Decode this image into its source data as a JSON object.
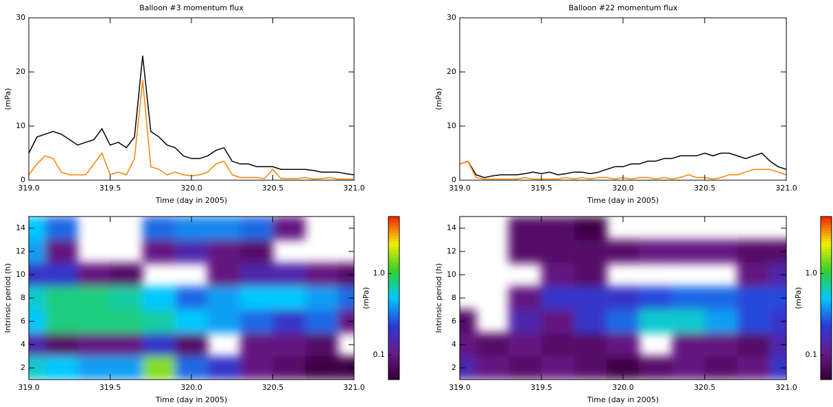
{
  "chart_data": [
    {
      "type": "line",
      "title": "Balloon #3 momentum flux",
      "xlabel": "Time (day in 2005)",
      "ylabel": "(mPa)",
      "x": [
        319.0,
        319.05,
        319.1,
        319.15,
        319.2,
        319.25,
        319.3,
        319.35,
        319.4,
        319.45,
        319.5,
        319.55,
        319.6,
        319.65,
        319.7,
        319.75,
        319.8,
        319.85,
        319.9,
        319.95,
        320.0,
        320.05,
        320.1,
        320.15,
        320.2,
        320.25,
        320.3,
        320.35,
        320.4,
        320.45,
        320.5,
        320.55,
        320.6,
        320.65,
        320.7,
        320.75,
        320.8,
        320.85,
        320.9,
        320.95,
        321.0
      ],
      "series": [
        {
          "color": "#000000",
          "values": [
            5,
            8,
            8.5,
            9,
            8.5,
            7.5,
            6.5,
            7,
            7.5,
            9.5,
            6.5,
            7,
            6,
            8,
            23,
            9,
            8,
            6.5,
            6,
            4.5,
            4,
            4,
            4.5,
            5.5,
            6,
            3.5,
            3,
            3,
            2.5,
            2.5,
            2.5,
            2,
            2,
            2,
            2,
            1.8,
            1.5,
            1.5,
            1.5,
            1.2,
            1
          ]
        },
        {
          "color": "#ff8000",
          "values": [
            1,
            3,
            4.5,
            4,
            1.5,
            1,
            1,
            1,
            3,
            5,
            1,
            1.5,
            1,
            4,
            18.5,
            2.5,
            2,
            1,
            1.5,
            1,
            0.8,
            1,
            1.5,
            3,
            3.5,
            1,
            0.5,
            0.5,
            0.5,
            0.3,
            2,
            0.3,
            0.3,
            0.3,
            0.5,
            0.2,
            0.3,
            0.5,
            0.2,
            0.2,
            0.2
          ]
        }
      ],
      "xlim": [
        319,
        321
      ],
      "xticks": [
        {
          "value": 319,
          "label": "319.0"
        },
        319.5,
        {
          "value": 320,
          "label": "320.0"
        },
        320.5,
        {
          "value": 321,
          "label": "321.0"
        }
      ],
      "ylim": [
        0,
        30
      ],
      "yticks": [
        0,
        10,
        20,
        30
      ]
    },
    {
      "type": "line",
      "title": "Balloon #22 momentum flux",
      "xlabel": "Time (day in 2005)",
      "ylabel": "(mPa)",
      "x": [
        319.0,
        319.05,
        319.1,
        319.15,
        319.2,
        319.25,
        319.3,
        319.35,
        319.4,
        319.45,
        319.5,
        319.55,
        319.6,
        319.65,
        319.7,
        319.75,
        319.8,
        319.85,
        319.9,
        319.95,
        320.0,
        320.05,
        320.1,
        320.15,
        320.2,
        320.25,
        320.3,
        320.35,
        320.4,
        320.45,
        320.5,
        320.55,
        320.6,
        320.65,
        320.7,
        320.75,
        320.8,
        320.85,
        320.9,
        320.95,
        321.0
      ],
      "series": [
        {
          "color": "#000000",
          "values": [
            3,
            3.5,
            1,
            0.5,
            0.8,
            1,
            1,
            1,
            1.2,
            1.5,
            1.2,
            1.5,
            1,
            1.2,
            1.5,
            1.5,
            1.2,
            1.5,
            2,
            2.5,
            2.5,
            3,
            3,
            3.5,
            3.5,
            4,
            4,
            4.5,
            4.5,
            4.5,
            5,
            4.5,
            5,
            5,
            4.5,
            4,
            4.5,
            5,
            3.5,
            2.5,
            2
          ]
        },
        {
          "color": "#ff8000",
          "values": [
            3,
            3.5,
            0.5,
            0.2,
            0.2,
            0.2,
            0.2,
            0.2,
            0.5,
            0.2,
            0.2,
            0.2,
            0.2,
            0.5,
            0.2,
            0.5,
            0.2,
            0.5,
            0.5,
            0.2,
            0.5,
            0.2,
            0.5,
            0.5,
            0.2,
            0.5,
            0.2,
            0.5,
            1,
            0.5,
            0.5,
            0.2,
            0.5,
            1,
            1,
            1.5,
            2,
            2,
            2,
            1.5,
            1
          ]
        }
      ],
      "xlim": [
        319,
        321
      ],
      "xticks": [
        {
          "value": 319,
          "label": "319.0"
        },
        319.5,
        {
          "value": 320,
          "label": "320.0"
        },
        320.5,
        {
          "value": 321,
          "label": "321.0"
        }
      ],
      "ylim": [
        0,
        30
      ],
      "yticks": [
        0,
        10,
        20,
        30
      ]
    },
    {
      "type": "heatmap",
      "xlabel": "Time (day in 2005)",
      "ylabel": "Intrinsic period (h)",
      "x": [
        319.0,
        319.2,
        319.4,
        319.6,
        319.8,
        320.0,
        320.2,
        320.4,
        320.6,
        320.8,
        321.0
      ],
      "y": [
        2,
        4,
        6,
        8,
        10,
        12,
        14
      ],
      "values": [
        [
          0.6,
          0.5,
          0.4,
          0.4,
          1.5,
          0.3,
          0.2,
          0.1,
          0.08,
          0.06,
          0.06
        ],
        [
          0.15,
          0.08,
          0.1,
          0.1,
          0.2,
          0.08,
          null,
          0.1,
          0.1,
          0.08,
          null
        ],
        [
          0.5,
          0.8,
          0.8,
          0.8,
          0.7,
          0.5,
          0.4,
          0.3,
          0.2,
          0.3,
          0.1
        ],
        [
          0.6,
          0.8,
          0.8,
          0.7,
          0.5,
          0.3,
          0.4,
          0.5,
          0.5,
          0.4,
          0.3
        ],
        [
          0.2,
          0.2,
          0.1,
          0.08,
          null,
          null,
          0.1,
          0.15,
          0.15,
          0.1,
          0.08
        ],
        [
          0.4,
          0.1,
          null,
          null,
          0.1,
          0.15,
          0.1,
          0.08,
          null,
          null,
          null
        ],
        [
          0.5,
          0.3,
          null,
          null,
          0.3,
          0.35,
          0.35,
          0.3,
          0.1,
          null,
          null
        ]
      ],
      "xlim": [
        319,
        321
      ],
      "xticks": [
        {
          "value": 319,
          "label": "319.0"
        },
        319.5,
        {
          "value": 320,
          "label": "320.0"
        },
        320.5,
        {
          "value": 321,
          "label": "321.0"
        }
      ],
      "ylim": [
        1,
        15
      ],
      "yticks": [
        2,
        4,
        6,
        8,
        10,
        12,
        14
      ],
      "colormap": [
        "#300030",
        "#6a1a8a",
        "#2a3ad8",
        "#00c8ff",
        "#30d030",
        "#f0f000",
        "#ff2000"
      ],
      "colorbar": {
        "label": "(mPa)",
        "log": true,
        "lim": [
          0.05,
          5
        ],
        "ticks": [
          0.1,
          {
            "value": 1,
            "label": "1.0"
          }
        ]
      }
    },
    {
      "type": "heatmap",
      "xlabel": "Time (day in 2005)",
      "ylabel": "Intrinsic period (h)",
      "x": [
        319.0,
        319.2,
        319.4,
        319.6,
        319.8,
        320.0,
        320.2,
        320.4,
        320.6,
        320.8,
        321.0
      ],
      "y": [
        2,
        4,
        6,
        8,
        10,
        12,
        14
      ],
      "values": [
        [
          0.15,
          0.1,
          0.08,
          0.1,
          0.08,
          0.06,
          0.08,
          0.1,
          0.08,
          0.1,
          0.2
        ],
        [
          0.1,
          0.08,
          0.1,
          0.08,
          0.08,
          0.1,
          null,
          0.1,
          0.1,
          0.08,
          0.15
        ],
        [
          0.08,
          null,
          0.15,
          0.1,
          0.2,
          0.3,
          0.6,
          0.6,
          0.4,
          0.25,
          0.2
        ],
        [
          null,
          null,
          0.1,
          0.2,
          0.2,
          0.2,
          0.25,
          0.3,
          0.3,
          0.25,
          0.25
        ],
        [
          null,
          null,
          null,
          0.1,
          0.08,
          null,
          null,
          null,
          null,
          0.1,
          0.15
        ],
        [
          null,
          null,
          0.08,
          0.08,
          0.08,
          0.08,
          0.1,
          0.1,
          0.1,
          0.08,
          0.08
        ],
        [
          null,
          null,
          0.08,
          0.08,
          0.06,
          null,
          null,
          null,
          null,
          null,
          null
        ]
      ],
      "xlim": [
        319,
        321
      ],
      "xticks": [
        {
          "value": 319,
          "label": "319.0"
        },
        319.5,
        {
          "value": 320,
          "label": "320.0"
        },
        320.5,
        {
          "value": 321,
          "label": "321.0"
        }
      ],
      "ylim": [
        1,
        15
      ],
      "yticks": [
        2,
        4,
        6,
        8,
        10,
        12,
        14
      ],
      "colormap": [
        "#300030",
        "#6a1a8a",
        "#2a3ad8",
        "#00c8ff",
        "#30d030",
        "#f0f000",
        "#ff2000"
      ],
      "colorbar": {
        "label": "(mPa)",
        "log": true,
        "lim": [
          0.05,
          5
        ],
        "ticks": [
          0.1,
          {
            "value": 1,
            "label": "1.0"
          }
        ]
      }
    }
  ]
}
